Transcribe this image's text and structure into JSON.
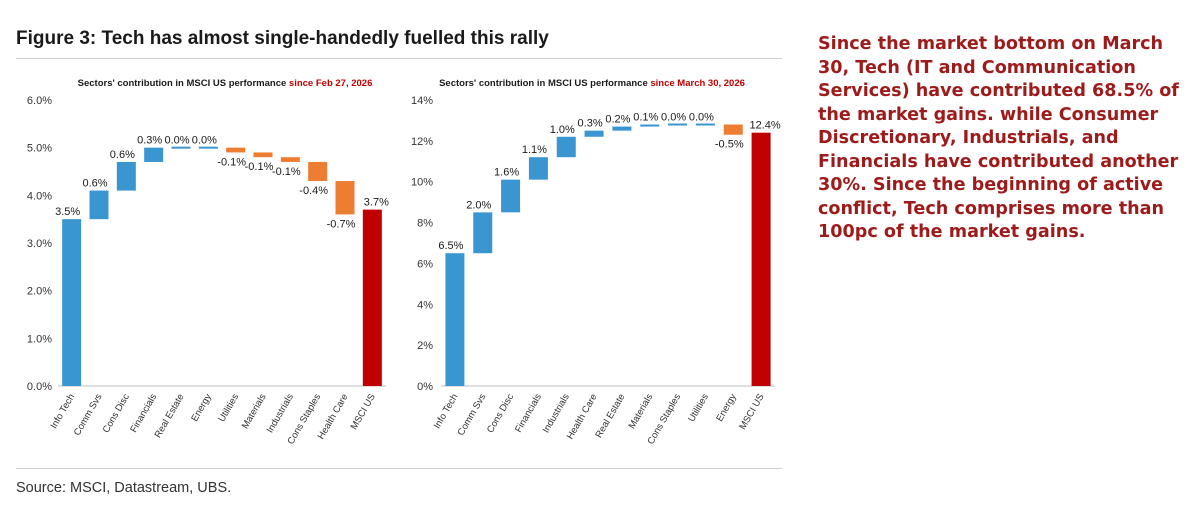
{
  "figure_title": "Figure 3: Tech has almost single-handedly fuelled this rally",
  "source": "Source: MSCI, Datastream, UBS.",
  "commentary": "Since the market bottom on March 30, Tech (IT and Communication Services) have contributed 68.5% of the market gains. while Consumer Discretionary, Industrials, and Financials have contributed another 30%. Since the beginning of active conflict, Tech comprises more than 100pc of the market gains.",
  "colors": {
    "positive": "#3a96d0",
    "negative": "#ed7d31",
    "total": "#c00000",
    "title_highlight": "#c00000",
    "commentary": "#9e1b1b"
  },
  "chart_data": [
    {
      "type": "bar",
      "subtype": "waterfall",
      "title": "Sectors' contribution in MSCI US performance",
      "title_highlight": "since Feb 27, 2026",
      "categories": [
        "Info Tech",
        "Comm Svs",
        "Cons Disc",
        "Financials",
        "Real Estate",
        "Energy",
        "Utilities",
        "Materials",
        "Industrials",
        "Cons Staples",
        "Health Care",
        "MSCI US"
      ],
      "values": [
        3.5,
        0.6,
        0.6,
        0.3,
        0.0,
        0.0,
        -0.1,
        -0.1,
        -0.1,
        -0.4,
        -0.7,
        3.7
      ],
      "data_labels": [
        "3.5%",
        "0.6%",
        "0.6%",
        "0.3%",
        "0.0%",
        "0.0%",
        "-0.1%",
        "-0.1%",
        "-0.1%",
        "-0.4%",
        "-0.7%",
        "3.7%"
      ],
      "total_index": 11,
      "yticks": [
        "0.0%",
        "1.0%",
        "2.0%",
        "3.0%",
        "4.0%",
        "5.0%",
        "6.0%"
      ],
      "ylim": [
        0,
        6
      ]
    },
    {
      "type": "bar",
      "subtype": "waterfall",
      "title": "Sectors' contribution in MSCI US performance",
      "title_highlight": "since March 30, 2026",
      "categories": [
        "Info Tech",
        "Comm Svs",
        "Cons Disc",
        "Financials",
        "Industrials",
        "Health Care",
        "Real Estate",
        "Materials",
        "Cons Staples",
        "Utilities",
        "Energy",
        "MSCI US"
      ],
      "values": [
        6.5,
        2.0,
        1.6,
        1.1,
        1.0,
        0.3,
        0.2,
        0.1,
        0.0,
        0.0,
        -0.5,
        12.4
      ],
      "data_labels": [
        "6.5%",
        "2.0%",
        "1.6%",
        "1.1%",
        "1.0%",
        "0.3%",
        "0.2%",
        "0.1%",
        "0.0%",
        "0.0%",
        "-0.5%",
        "12.4%"
      ],
      "total_index": 11,
      "yticks": [
        "0%",
        "2%",
        "4%",
        "6%",
        "8%",
        "10%",
        "12%",
        "14%"
      ],
      "ylim": [
        0,
        14
      ]
    }
  ]
}
